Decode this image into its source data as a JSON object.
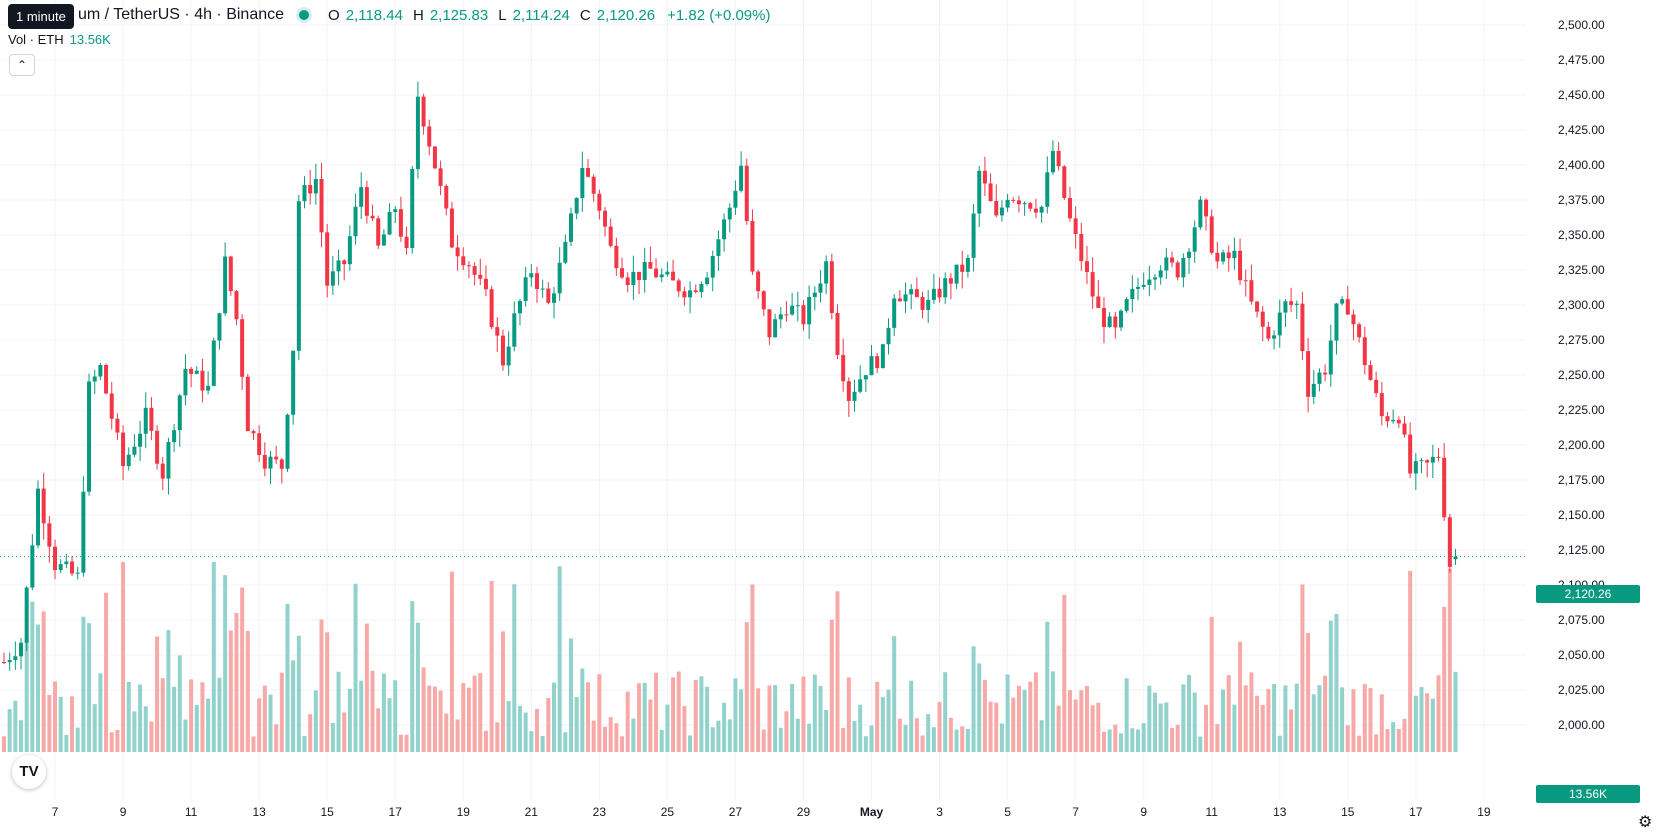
{
  "legend": {
    "symbol": "um / TetherUS · 4h · Binance",
    "open_label": "O",
    "open": "2,118.44",
    "high_label": "H",
    "high": "2,125.83",
    "low_label": "L",
    "low": "2,114.24",
    "close_label": "C",
    "close": "2,120.26",
    "change": "+1.82 (+0.09%)"
  },
  "tooltip": "1 minute",
  "volume_legend": {
    "label": "Vol · ETH",
    "value": "13.56K"
  },
  "collapse_icon": "chevron-up-icon",
  "current_price_label": "2,120.26",
  "volume_label": "13.56K",
  "logo_text": "TV",
  "settings_icon": "gear-icon",
  "colors": {
    "up": "#089981",
    "down": "#f23645",
    "up_vol": "#92d2cc",
    "down_vol": "#f7a9a7"
  },
  "chart_data": {
    "type": "candlestick",
    "ylim": [
      2000,
      2500
    ],
    "y_ticks": [
      "2,000.00",
      "2,025.00",
      "2,050.00",
      "2,075.00",
      "2,100.00",
      "2,125.00",
      "2,150.00",
      "2,175.00",
      "2,200.00",
      "2,225.00",
      "2,250.00",
      "2,275.00",
      "2,300.00",
      "2,325.00",
      "2,350.00",
      "2,375.00",
      "2,400.00",
      "2,425.00",
      "2,450.00",
      "2,475.00",
      "2,500.00"
    ],
    "x_ticks": [
      {
        "label": "7",
        "bar": 9
      },
      {
        "label": "9",
        "bar": 21
      },
      {
        "label": "11",
        "bar": 33
      },
      {
        "label": "13",
        "bar": 45
      },
      {
        "label": "15",
        "bar": 57
      },
      {
        "label": "17",
        "bar": 69
      },
      {
        "label": "19",
        "bar": 81
      },
      {
        "label": "21",
        "bar": 93
      },
      {
        "label": "23",
        "bar": 105
      },
      {
        "label": "25",
        "bar": 117
      },
      {
        "label": "27",
        "bar": 129
      },
      {
        "label": "29",
        "bar": 141
      },
      {
        "label": "May",
        "bar": 153
      },
      {
        "label": "3",
        "bar": 165
      },
      {
        "label": "5",
        "bar": 177
      },
      {
        "label": "7",
        "bar": 189
      },
      {
        "label": "9",
        "bar": 201
      },
      {
        "label": "11",
        "bar": 213
      },
      {
        "label": "13",
        "bar": 225
      },
      {
        "label": "15",
        "bar": 237
      },
      {
        "label": "17",
        "bar": 249
      },
      {
        "label": "19",
        "bar": 261
      }
    ],
    "current_price": 2120.26,
    "anchors": [
      [
        0,
        2045
      ],
      [
        3,
        2060
      ],
      [
        6,
        2168
      ],
      [
        9,
        2115
      ],
      [
        13,
        2105
      ],
      [
        15,
        2240
      ],
      [
        17,
        2255
      ],
      [
        21,
        2185
      ],
      [
        25,
        2220
      ],
      [
        28,
        2180
      ],
      [
        32,
        2255
      ],
      [
        36,
        2240
      ],
      [
        39,
        2330
      ],
      [
        41,
        2290
      ],
      [
        43,
        2215
      ],
      [
        46,
        2190
      ],
      [
        49,
        2185
      ],
      [
        51,
        2270
      ],
      [
        52,
        2375
      ],
      [
        55,
        2390
      ],
      [
        57,
        2315
      ],
      [
        60,
        2330
      ],
      [
        63,
        2385
      ],
      [
        66,
        2340
      ],
      [
        69,
        2370
      ],
      [
        71,
        2335
      ],
      [
        73,
        2450
      ],
      [
        76,
        2400
      ],
      [
        79,
        2345
      ],
      [
        82,
        2330
      ],
      [
        85,
        2305
      ],
      [
        88,
        2260
      ],
      [
        90,
        2290
      ],
      [
        93,
        2325
      ],
      [
        96,
        2300
      ],
      [
        99,
        2340
      ],
      [
        102,
        2400
      ],
      [
        105,
        2370
      ],
      [
        107,
        2340
      ],
      [
        110,
        2320
      ],
      [
        114,
        2325
      ],
      [
        118,
        2315
      ],
      [
        121,
        2310
      ],
      [
        124,
        2325
      ],
      [
        128,
        2370
      ],
      [
        130,
        2400
      ],
      [
        132,
        2320
      ],
      [
        135,
        2280
      ],
      [
        138,
        2300
      ],
      [
        141,
        2290
      ],
      [
        145,
        2330
      ],
      [
        147,
        2270
      ],
      [
        149,
        2235
      ],
      [
        152,
        2255
      ],
      [
        155,
        2265
      ],
      [
        157,
        2310
      ],
      [
        160,
        2305
      ],
      [
        163,
        2300
      ],
      [
        166,
        2315
      ],
      [
        170,
        2330
      ],
      [
        172,
        2395
      ],
      [
        175,
        2360
      ],
      [
        177,
        2380
      ],
      [
        180,
        2375
      ],
      [
        183,
        2370
      ],
      [
        185,
        2410
      ],
      [
        188,
        2360
      ],
      [
        191,
        2320
      ],
      [
        193,
        2295
      ],
      [
        196,
        2280
      ],
      [
        198,
        2300
      ],
      [
        201,
        2320
      ],
      [
        204,
        2330
      ],
      [
        207,
        2325
      ],
      [
        209,
        2345
      ],
      [
        211,
        2370
      ],
      [
        214,
        2330
      ],
      [
        217,
        2335
      ],
      [
        220,
        2300
      ],
      [
        223,
        2275
      ],
      [
        226,
        2300
      ],
      [
        228,
        2300
      ],
      [
        230,
        2240
      ],
      [
        233,
        2255
      ],
      [
        235,
        2295
      ],
      [
        237,
        2300
      ],
      [
        240,
        2260
      ],
      [
        243,
        2220
      ],
      [
        246,
        2222
      ],
      [
        248,
        2180
      ],
      [
        251,
        2185
      ],
      [
        253,
        2193
      ],
      [
        255,
        2115
      ],
      [
        256,
        2120
      ]
    ],
    "volume_scale_max": 100
  }
}
